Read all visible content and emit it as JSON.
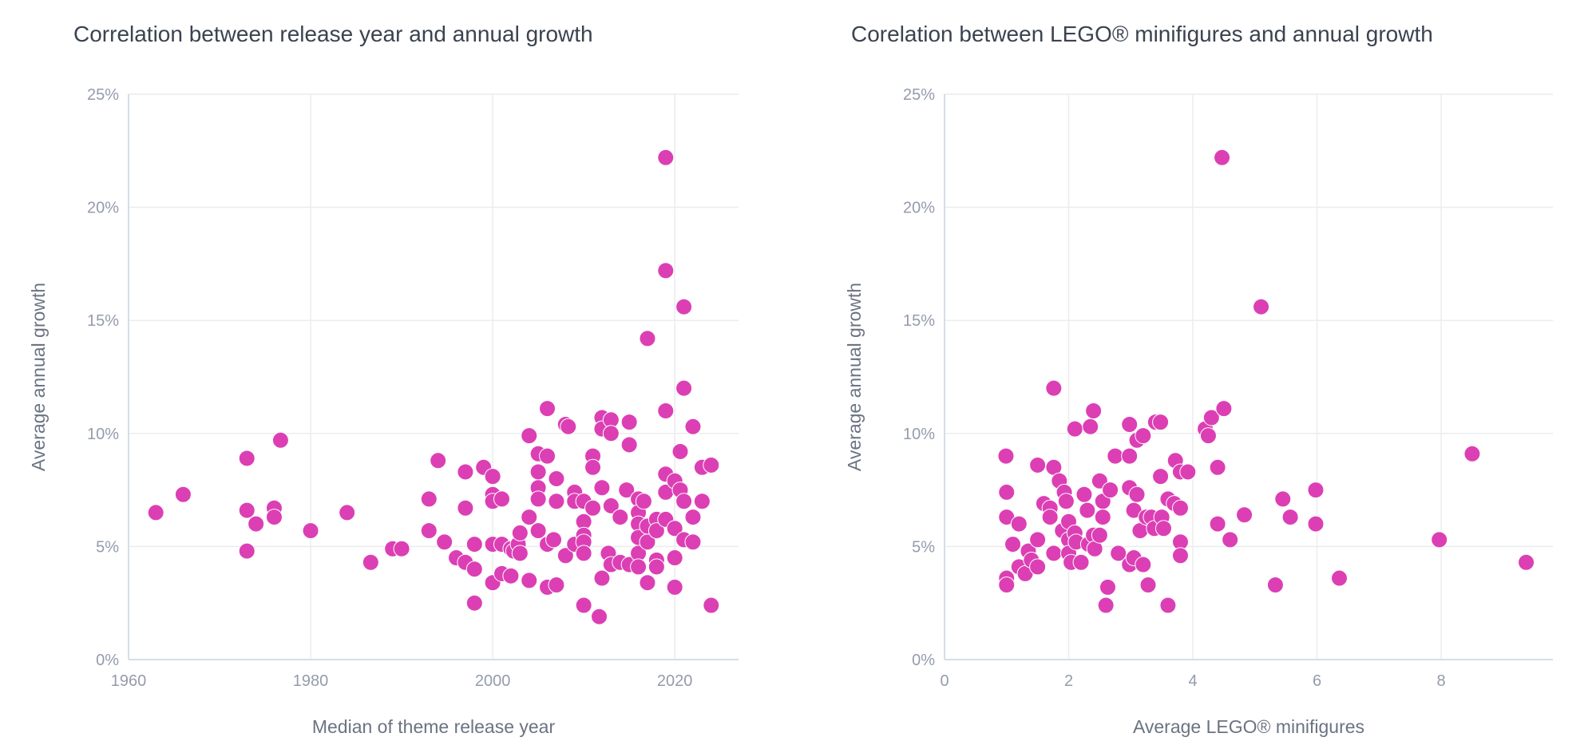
{
  "chart_data": [
    {
      "type": "scatter",
      "title": "Correlation between release year and annual growth",
      "xlabel": "Median of theme release year",
      "ylabel": "Average annual growth",
      "xlim": [
        1960,
        2027
      ],
      "ylim": [
        0,
        25
      ],
      "xticks": [
        1960,
        1980,
        2000,
        2020
      ],
      "xtick_labels": [
        "1960",
        "1980",
        "2000",
        "2020"
      ],
      "yticks": [
        0,
        5,
        10,
        15,
        20,
        25
      ],
      "ytick_labels": [
        "0%",
        "5%",
        "10%",
        "15%",
        "20%",
        "25%"
      ],
      "grid": true,
      "color": "#dc3fb4",
      "points": [
        [
          1963,
          6.5
        ],
        [
          1966,
          7.3
        ],
        [
          1973,
          8.9
        ],
        [
          1973,
          6.6
        ],
        [
          1973,
          4.8
        ],
        [
          1974,
          6.0
        ],
        [
          1976,
          6.7
        ],
        [
          1976,
          6.3
        ],
        [
          1976.7,
          9.7
        ],
        [
          1980,
          5.7
        ],
        [
          1984,
          6.5
        ],
        [
          1986.6,
          4.3
        ],
        [
          1989,
          4.9
        ],
        [
          1990,
          4.9
        ],
        [
          1993,
          7.1
        ],
        [
          1993,
          5.7
        ],
        [
          1994,
          8.8
        ],
        [
          1994.7,
          5.2
        ],
        [
          1996,
          4.5
        ],
        [
          1997,
          8.3
        ],
        [
          1997,
          6.7
        ],
        [
          1997,
          4.3
        ],
        [
          1998,
          5.1
        ],
        [
          1998,
          4.0
        ],
        [
          1998,
          2.5
        ],
        [
          1999,
          8.5
        ],
        [
          2000,
          8.1
        ],
        [
          2000,
          7.3
        ],
        [
          2000,
          7.0
        ],
        [
          2000,
          5.1
        ],
        [
          2000,
          3.4
        ],
        [
          2001,
          7.1
        ],
        [
          2001,
          5.1
        ],
        [
          2001,
          3.8
        ],
        [
          2002,
          4.9
        ],
        [
          2002.3,
          4.8
        ],
        [
          2002,
          3.7
        ],
        [
          2002.8,
          5.1
        ],
        [
          2003,
          4.7
        ],
        [
          2003,
          5.6
        ],
        [
          2004,
          9.9
        ],
        [
          2004,
          6.3
        ],
        [
          2004,
          3.5
        ],
        [
          2005,
          9.1
        ],
        [
          2005,
          8.3
        ],
        [
          2005,
          7.6
        ],
        [
          2005,
          7.1
        ],
        [
          2005,
          5.7
        ],
        [
          2006,
          11.1
        ],
        [
          2006,
          9.0
        ],
        [
          2006,
          5.1
        ],
        [
          2006,
          3.2
        ],
        [
          2006.7,
          5.3
        ],
        [
          2007,
          8.0
        ],
        [
          2007,
          7.0
        ],
        [
          2007,
          3.3
        ],
        [
          2008,
          10.4
        ],
        [
          2008.3,
          10.3
        ],
        [
          2008,
          4.6
        ],
        [
          2009,
          7.4
        ],
        [
          2009,
          7.0
        ],
        [
          2009,
          5.1
        ],
        [
          2010,
          7.0
        ],
        [
          2010,
          6.1
        ],
        [
          2010,
          5.5
        ],
        [
          2010,
          5.2
        ],
        [
          2010,
          4.7
        ],
        [
          2010,
          2.4
        ],
        [
          2011,
          9.0
        ],
        [
          2011,
          8.5
        ],
        [
          2011,
          6.7
        ],
        [
          2011.7,
          1.9
        ],
        [
          2012,
          10.7
        ],
        [
          2012,
          10.2
        ],
        [
          2012,
          7.6
        ],
        [
          2012,
          3.6
        ],
        [
          2012.7,
          4.7
        ],
        [
          2013,
          10.6
        ],
        [
          2013,
          10.0
        ],
        [
          2013,
          6.8
        ],
        [
          2013,
          4.2
        ],
        [
          2014,
          6.3
        ],
        [
          2014,
          4.3
        ],
        [
          2014.7,
          7.5
        ],
        [
          2015,
          9.5
        ],
        [
          2015,
          10.5
        ],
        [
          2015,
          4.2
        ],
        [
          2016,
          7.1
        ],
        [
          2016,
          6.5
        ],
        [
          2016,
          6.0
        ],
        [
          2016,
          5.4
        ],
        [
          2016,
          4.7
        ],
        [
          2016,
          4.1
        ],
        [
          2016.6,
          7.0
        ],
        [
          2017,
          14.2
        ],
        [
          2017,
          3.4
        ],
        [
          2017,
          5.2
        ],
        [
          2017,
          5.9
        ],
        [
          2018,
          6.2
        ],
        [
          2018,
          5.7
        ],
        [
          2018,
          4.4
        ],
        [
          2018,
          4.1
        ],
        [
          2019,
          22.2
        ],
        [
          2019,
          17.2
        ],
        [
          2019,
          11.0
        ],
        [
          2019,
          8.2
        ],
        [
          2019,
          7.4
        ],
        [
          2019,
          6.2
        ],
        [
          2020,
          7.9
        ],
        [
          2020,
          5.8
        ],
        [
          2020,
          4.5
        ],
        [
          2020,
          3.2
        ],
        [
          2020.6,
          9.2
        ],
        [
          2020.6,
          7.5
        ],
        [
          2021,
          15.6
        ],
        [
          2021,
          12.0
        ],
        [
          2021,
          7.0
        ],
        [
          2021,
          5.3
        ],
        [
          2022,
          10.3
        ],
        [
          2022,
          6.3
        ],
        [
          2022,
          5.2
        ],
        [
          2023,
          8.5
        ],
        [
          2023,
          7.0
        ],
        [
          2024,
          8.6
        ],
        [
          2024,
          2.4
        ]
      ]
    },
    {
      "type": "scatter",
      "title": "Corelation between LEGO® minifigures and annual growth",
      "xlabel": "Average LEGO® minifigures",
      "ylabel": "Average annual growth",
      "xlim": [
        0,
        9.8
      ],
      "ylim": [
        0,
        25
      ],
      "xticks": [
        0,
        2,
        4,
        6,
        8
      ],
      "xtick_labels": [
        "0",
        "2",
        "4",
        "6",
        "8"
      ],
      "yticks": [
        0,
        5,
        10,
        15,
        20,
        25
      ],
      "ytick_labels": [
        "0%",
        "5%",
        "10%",
        "15%",
        "20%",
        "25%"
      ],
      "grid": true,
      "color": "#dc3fb4",
      "points": [
        [
          0.99,
          9.0
        ],
        [
          1.0,
          7.4
        ],
        [
          1.0,
          6.3
        ],
        [
          1.0,
          3.6
        ],
        [
          1.0,
          3.3
        ],
        [
          1.1,
          5.1
        ],
        [
          1.2,
          6.0
        ],
        [
          1.2,
          4.1
        ],
        [
          1.3,
          3.8
        ],
        [
          1.35,
          4.8
        ],
        [
          1.4,
          4.4
        ],
        [
          1.5,
          5.3
        ],
        [
          1.5,
          4.1
        ],
        [
          1.5,
          8.6
        ],
        [
          1.6,
          6.9
        ],
        [
          1.7,
          6.7
        ],
        [
          1.7,
          6.3
        ],
        [
          1.76,
          8.5
        ],
        [
          1.76,
          12.0
        ],
        [
          1.76,
          4.7
        ],
        [
          1.85,
          7.9
        ],
        [
          1.9,
          5.7
        ],
        [
          1.93,
          7.4
        ],
        [
          1.96,
          7.0
        ],
        [
          2.0,
          6.1
        ],
        [
          2.0,
          5.3
        ],
        [
          2.0,
          4.7
        ],
        [
          2.04,
          4.3
        ],
        [
          2.1,
          10.2
        ],
        [
          2.1,
          5.6
        ],
        [
          2.12,
          5.2
        ],
        [
          2.2,
          4.3
        ],
        [
          2.25,
          7.3
        ],
        [
          2.3,
          6.6
        ],
        [
          2.32,
          5.1
        ],
        [
          2.35,
          10.3
        ],
        [
          2.4,
          11.0
        ],
        [
          2.4,
          5.5
        ],
        [
          2.42,
          4.9
        ],
        [
          2.5,
          5.5
        ],
        [
          2.5,
          7.9
        ],
        [
          2.55,
          7.0
        ],
        [
          2.55,
          6.3
        ],
        [
          2.6,
          2.4
        ],
        [
          2.63,
          3.2
        ],
        [
          2.67,
          7.5
        ],
        [
          2.75,
          9.0
        ],
        [
          2.8,
          4.7
        ],
        [
          2.98,
          10.4
        ],
        [
          2.98,
          9.0
        ],
        [
          2.98,
          7.6
        ],
        [
          2.98,
          4.2
        ],
        [
          3.05,
          6.6
        ],
        [
          3.05,
          4.5
        ],
        [
          3.1,
          7.3
        ],
        [
          3.1,
          9.7
        ],
        [
          3.15,
          5.7
        ],
        [
          3.2,
          4.2
        ],
        [
          3.2,
          9.9
        ],
        [
          3.25,
          6.3
        ],
        [
          3.28,
          3.3
        ],
        [
          3.33,
          6.3
        ],
        [
          3.38,
          5.8
        ],
        [
          3.4,
          10.5
        ],
        [
          3.48,
          8.1
        ],
        [
          3.48,
          10.5
        ],
        [
          3.5,
          6.3
        ],
        [
          3.53,
          5.8
        ],
        [
          3.6,
          7.1
        ],
        [
          3.6,
          2.4
        ],
        [
          3.7,
          6.9
        ],
        [
          3.72,
          8.8
        ],
        [
          3.8,
          8.3
        ],
        [
          3.8,
          6.7
        ],
        [
          3.8,
          5.2
        ],
        [
          3.8,
          4.6
        ],
        [
          3.92,
          8.3
        ],
        [
          4.2,
          10.2
        ],
        [
          4.25,
          9.9
        ],
        [
          4.3,
          10.7
        ],
        [
          4.4,
          8.5
        ],
        [
          4.4,
          6.0
        ],
        [
          4.47,
          22.2
        ],
        [
          4.5,
          11.1
        ],
        [
          4.6,
          5.3
        ],
        [
          4.83,
          6.4
        ],
        [
          5.1,
          15.6
        ],
        [
          5.33,
          3.3
        ],
        [
          5.45,
          7.1
        ],
        [
          5.57,
          6.3
        ],
        [
          5.98,
          7.5
        ],
        [
          5.98,
          6.0
        ],
        [
          6.36,
          3.6
        ],
        [
          7.97,
          5.3
        ],
        [
          8.5,
          9.1
        ],
        [
          9.37,
          4.3
        ]
      ]
    }
  ]
}
